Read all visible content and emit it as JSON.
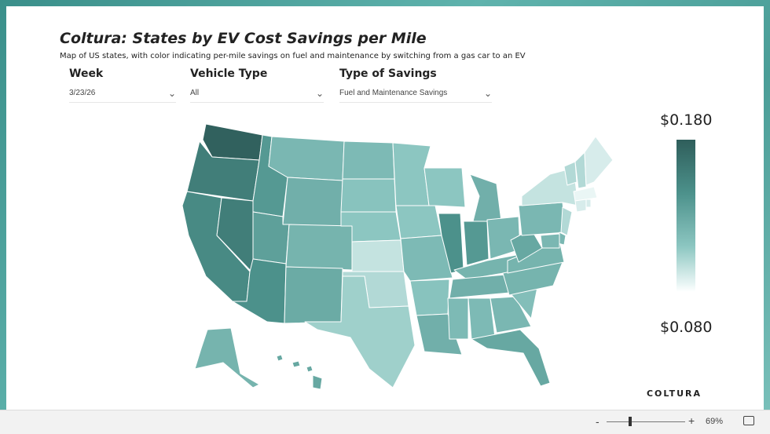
{
  "report": {
    "title": "Coltura: States by EV Cost Savings per Mile",
    "subtitle": "Map of US states, with color indicating per-mile savings on fuel and maintenance by switching from a gas car to an EV"
  },
  "filters": [
    {
      "label": "Week",
      "value": "3/23/26"
    },
    {
      "label": "Vehicle Type",
      "value": "All"
    },
    {
      "label": "Type of Savings",
      "value": "Fuel and Maintenance Savings"
    }
  ],
  "legend": {
    "max": "$0.180",
    "min": "$0.080",
    "low_color": "#ffffff",
    "high_color": "#2f5e5b"
  },
  "logo": {
    "text": "COLTURA",
    "color": "#c8353a"
  },
  "statusbar": {
    "zoom_minus": "-",
    "zoom_plus": "+",
    "zoom": "69%"
  },
  "map_data": {
    "type": "choropleth",
    "metric": "per-mile savings",
    "scale": [
      0.08,
      0.18
    ],
    "states": {
      "WA": 0.178,
      "OR": 0.158,
      "CA": 0.15,
      "NV": 0.158,
      "ID": 0.14,
      "MT": 0.12,
      "WY": 0.125,
      "UT": 0.135,
      "AZ": 0.145,
      "CO": 0.122,
      "NM": 0.128,
      "ND": 0.118,
      "SD": 0.112,
      "NE": 0.11,
      "KS": 0.095,
      "OK": 0.1,
      "TX": 0.105,
      "MN": 0.11,
      "IA": 0.11,
      "MO": 0.118,
      "AR": 0.112,
      "LA": 0.125,
      "WI": 0.11,
      "IL": 0.145,
      "MI": 0.125,
      "IN": 0.14,
      "OH": 0.12,
      "KY": 0.122,
      "TN": 0.125,
      "MS": 0.118,
      "AL": 0.118,
      "GA": 0.12,
      "FL": 0.13,
      "SC": 0.115,
      "NC": 0.122,
      "VA": 0.122,
      "WV": 0.13,
      "PA": 0.12,
      "NY": 0.095,
      "VT": 0.1,
      "NH": 0.1,
      "ME": 0.09,
      "MA": 0.085,
      "CT": 0.09,
      "RI": 0.09,
      "NJ": 0.1,
      "DE": 0.12,
      "MD": 0.12,
      "AK": 0.122,
      "HI": 0.13
    }
  }
}
